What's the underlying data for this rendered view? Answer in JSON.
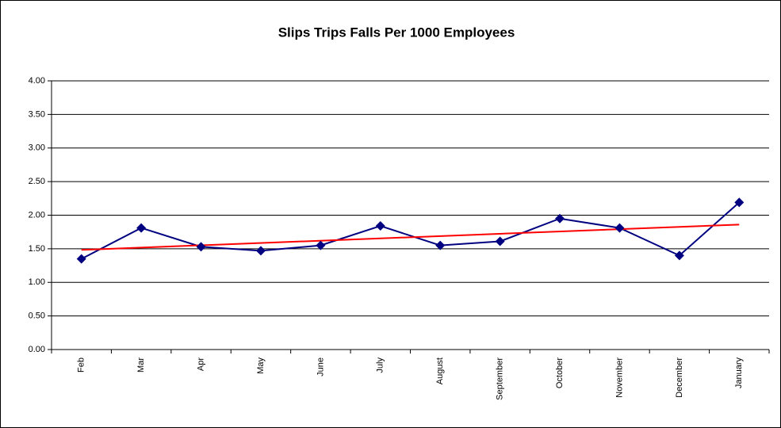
{
  "chart_data": {
    "type": "line",
    "title": "Slips Trips Falls Per 1000 Employees",
    "categories": [
      "Feb",
      "Mar",
      "Apr",
      "May",
      "June",
      "July",
      "August",
      "September",
      "October",
      "November",
      "December",
      "January"
    ],
    "series": [
      {
        "name": "Slips Trips Falls Per 1000 Employees",
        "color": "#000080",
        "values": [
          1.35,
          1.81,
          1.53,
          1.47,
          1.55,
          1.84,
          1.55,
          1.61,
          1.95,
          1.81,
          1.4,
          2.19
        ]
      }
    ],
    "trendline": true,
    "trendline_color": "#ff0000",
    "ylim": [
      0,
      4
    ],
    "yticks": [
      {
        "value": 0,
        "label": "0.00"
      },
      {
        "value": 0.5,
        "label": "0.50"
      },
      {
        "value": 1,
        "label": "1.00"
      },
      {
        "value": 1.5,
        "label": "1.50"
      },
      {
        "value": 2,
        "label": "2.00"
      },
      {
        "value": 2.5,
        "label": "2.50"
      },
      {
        "value": 3,
        "label": "3.00"
      },
      {
        "value": 3.5,
        "label": "3.50"
      },
      {
        "value": 4,
        "label": "4.00"
      }
    ],
    "grid": true,
    "legend": false
  }
}
